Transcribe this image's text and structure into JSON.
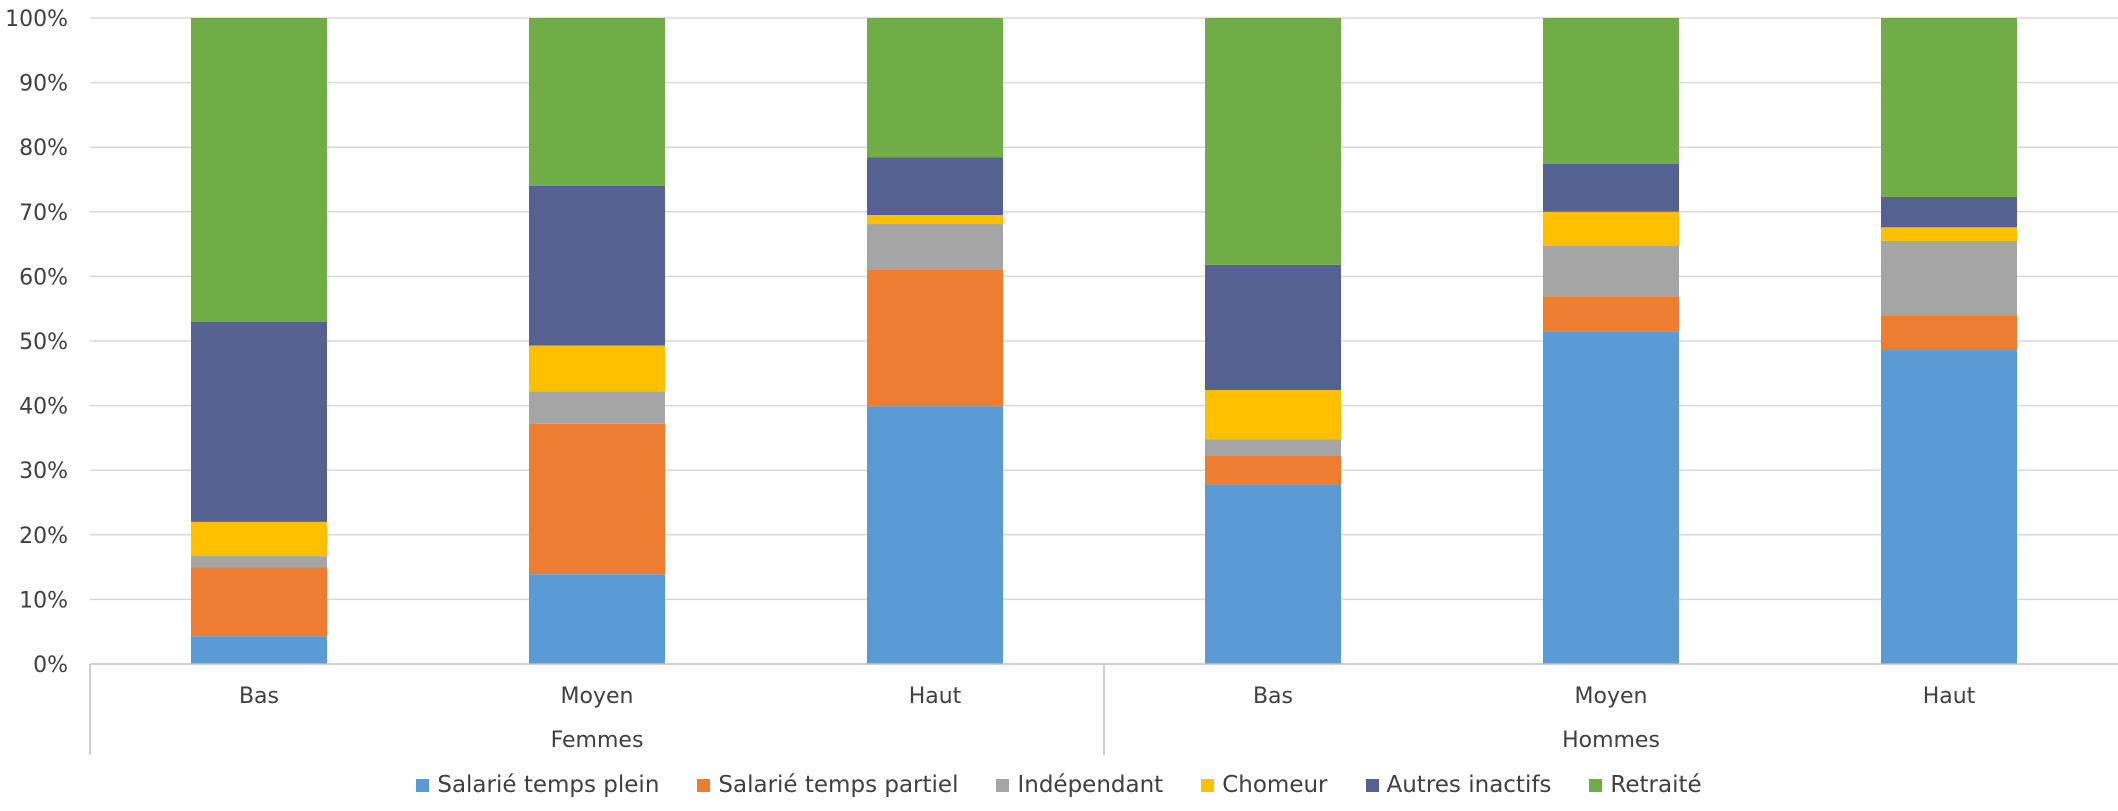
{
  "chart_data": {
    "type": "bar",
    "stacked": true,
    "percent": true,
    "groups": [
      "Femmes",
      "Hommes"
    ],
    "categories": [
      "Bas",
      "Moyen",
      "Haut",
      "Bas",
      "Moyen",
      "Haut"
    ],
    "category_group": [
      "Femmes",
      "Femmes",
      "Femmes",
      "Hommes",
      "Hommes",
      "Hommes"
    ],
    "ylim": [
      0,
      100
    ],
    "yticks": [
      "0%",
      "10%",
      "20%",
      "30%",
      "40%",
      "50%",
      "60%",
      "70%",
      "80%",
      "90%",
      "100%"
    ],
    "grid": true,
    "legend_position": "bottom",
    "series": [
      {
        "name": "Salarié temps plein",
        "color": "#5B9BD5",
        "values": [
          4.3,
          13.9,
          39.9,
          27.8,
          51.5,
          48.6
        ]
      },
      {
        "name": "Salarié temps partiel",
        "color": "#ED7D31",
        "values": [
          10.7,
          23.3,
          21.2,
          4.4,
          5.4,
          5.4
        ]
      },
      {
        "name": "Indépendant",
        "color": "#A5A5A5",
        "values": [
          1.7,
          5.0,
          7.0,
          2.6,
          7.8,
          11.5
        ]
      },
      {
        "name": "Chomeur",
        "color": "#FFC000",
        "values": [
          5.3,
          7.1,
          1.4,
          7.6,
          5.3,
          2.1
        ]
      },
      {
        "name": "Autres inactifs",
        "color": "#556291",
        "values": [
          31.0,
          24.7,
          8.9,
          19.4,
          7.4,
          4.7
        ]
      },
      {
        "name": "Retraité",
        "color": "#70AD47",
        "values": [
          47.0,
          26.0,
          21.6,
          38.2,
          22.6,
          27.7
        ]
      }
    ]
  }
}
